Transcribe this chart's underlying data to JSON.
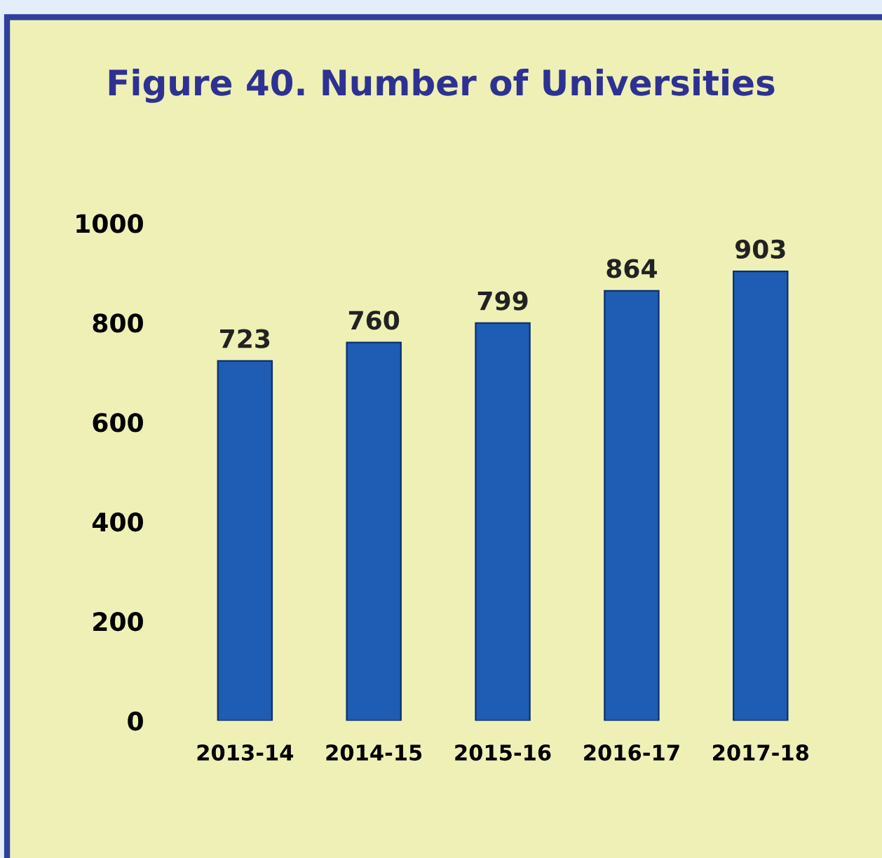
{
  "chart_data": {
    "type": "bar",
    "title": "Figure 40. Number of Universities",
    "categories": [
      "2013-14",
      "2014-15",
      "2015-16",
      "2016-17",
      "2017-18"
    ],
    "values": [
      723,
      760,
      799,
      864,
      903
    ],
    "color": "#1f5cb3",
    "ylim": [
      0,
      1000
    ],
    "yticks": [
      0,
      200,
      400,
      600,
      800,
      1000
    ],
    "grid": false,
    "data_labels": true
  }
}
